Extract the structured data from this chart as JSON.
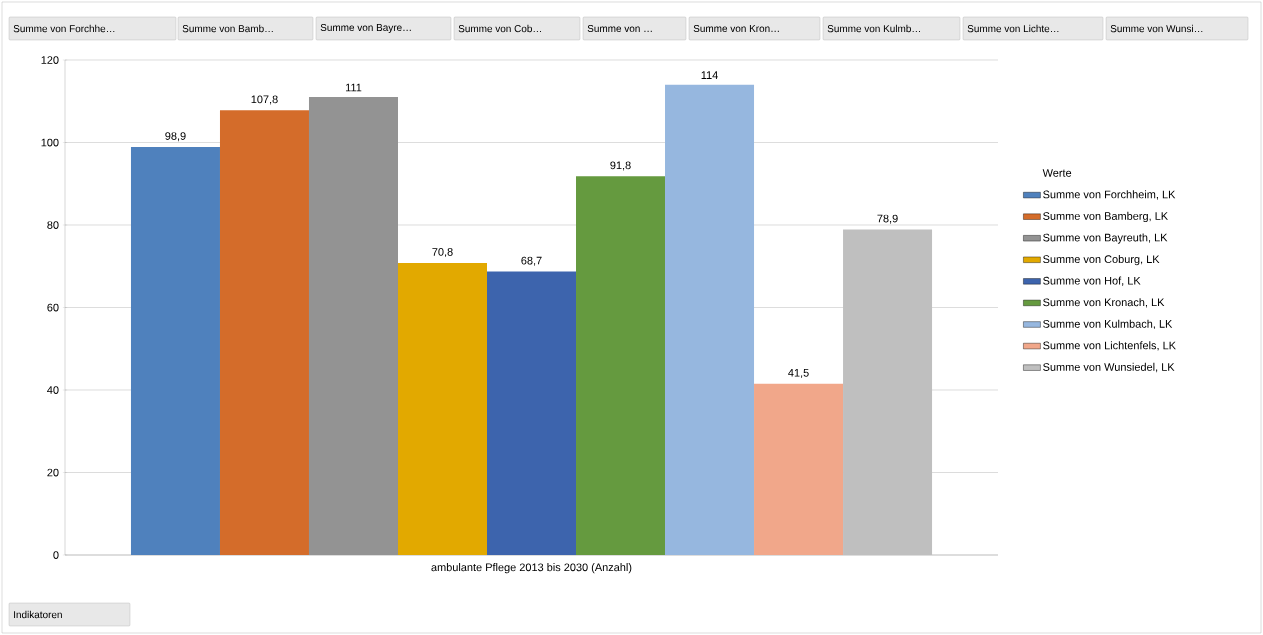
{
  "chart_data": {
    "type": "bar",
    "categories": [
      "ambulante Pflege 2013 bis 2030 (Anzahl)"
    ],
    "series": [
      {
        "name": "Summe von Forchheim, LK",
        "color": "#4f81bd",
        "values": [
          98.9
        ],
        "value_labels": [
          "98,9"
        ]
      },
      {
        "name": "Summe von Bamberg, LK",
        "color": "#d46c2a",
        "values": [
          107.8
        ],
        "value_labels": [
          "107,8"
        ]
      },
      {
        "name": "Summe von Bayreuth, LK",
        "color": "#939393",
        "values": [
          111
        ],
        "value_labels": [
          "111"
        ]
      },
      {
        "name": "Summe von Coburg, LK",
        "color": "#e2a900",
        "values": [
          70.8
        ],
        "value_labels": [
          "70,8"
        ]
      },
      {
        "name": "Summe von Hof, LK",
        "color": "#3d64ad",
        "values": [
          68.7
        ],
        "value_labels": [
          "68,7"
        ]
      },
      {
        "name": "Summe von Kronach, LK",
        "color": "#659a3f",
        "values": [
          91.8
        ],
        "value_labels": [
          "91,8"
        ]
      },
      {
        "name": "Summe von Kulmbach, LK",
        "color": "#96b7df",
        "values": [
          114
        ],
        "value_labels": [
          "114"
        ]
      },
      {
        "name": "Summe von Lichtenfels, LK",
        "color": "#f1a78a",
        "values": [
          41.5
        ],
        "value_labels": [
          "41,5"
        ]
      },
      {
        "name": "Summe von Wunsiedel, LK",
        "color": "#bfbfbf",
        "values": [
          78.9
        ],
        "value_labels": [
          "78,9"
        ]
      }
    ],
    "ylim": [
      0,
      120
    ],
    "yticks": [
      0,
      20,
      40,
      60,
      80,
      100,
      120
    ],
    "grid": "y",
    "legend": "right",
    "legend_title": "Werte",
    "annotations": [
      "Summe von Forchhe…",
      "Summe von Bamb…",
      "Summe von Bayre…",
      "Summe von Cob…",
      "Summe von …",
      "Summe von Kron…",
      "Summe von Kulmb…",
      "Summe von Lichte…",
      "Summe von Wunsi…",
      "Indikatoren"
    ]
  }
}
